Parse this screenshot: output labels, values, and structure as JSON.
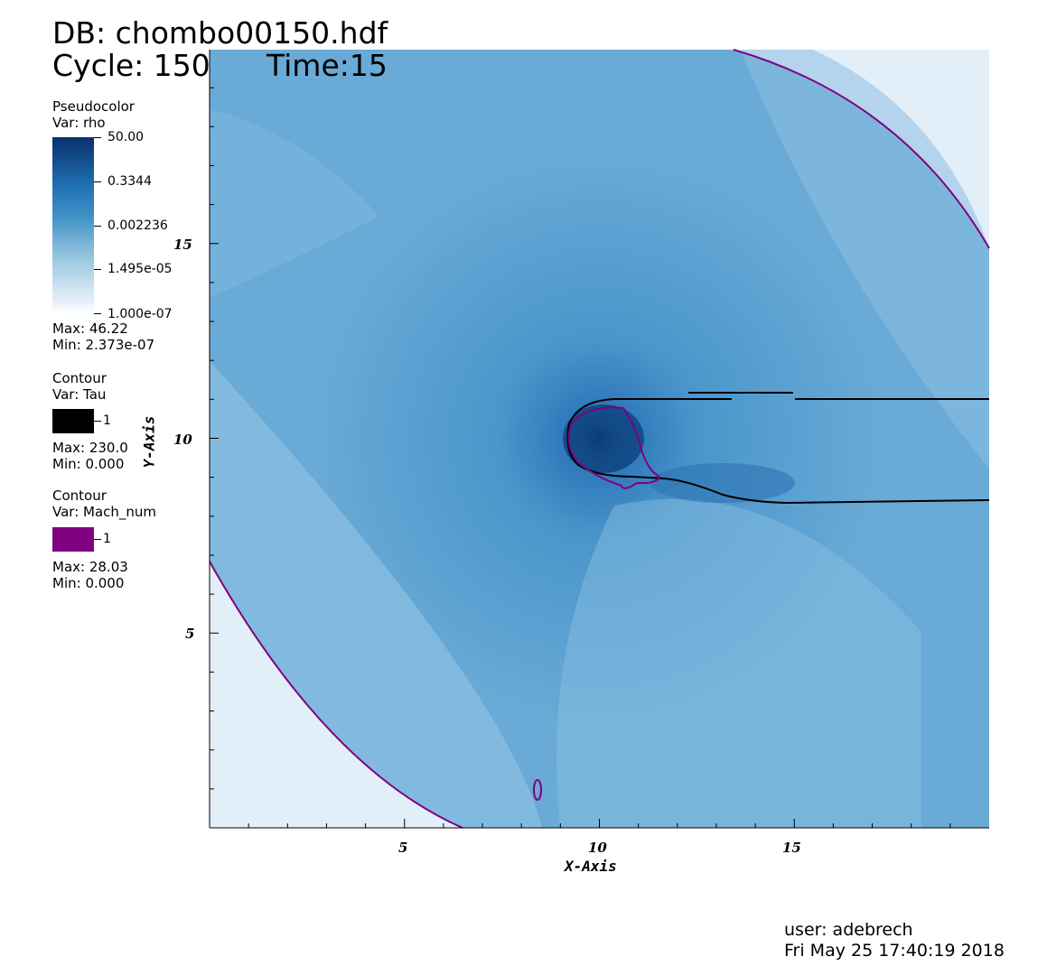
{
  "header": {
    "db_line": "DB: chombo00150.hdf",
    "cycle_label": "Cycle: 150",
    "time_label": "Time:15"
  },
  "legend_pseudocolor": {
    "title": "Pseudocolor",
    "var": "Var: rho",
    "ticks": [
      "50.00",
      "0.3344",
      "0.002236",
      "1.495e-05",
      "1.000e-07"
    ],
    "max": "Max:  46.22",
    "min": "Min:  2.373e-07"
  },
  "legend_contour_tau": {
    "title": "Contour",
    "var": "Var: Tau",
    "level": "1",
    "color": "#000000",
    "max": "Max:  230.0",
    "min": "Min:  0.000"
  },
  "legend_contour_mach": {
    "title": "Contour",
    "var": "Var: Mach_num",
    "level": "1",
    "color": "#800080",
    "max": "Max:  28.03",
    "min": "Min:  0.000"
  },
  "axes": {
    "x_label": "X-Axis",
    "y_label": "Y-Axis",
    "x_ticks": [
      "5",
      "10",
      "15"
    ],
    "y_ticks": [
      "15",
      "10",
      "5"
    ]
  },
  "footer": {
    "user": "user: adebrech",
    "date": "Fri May 25 17:40:19 2018"
  }
}
